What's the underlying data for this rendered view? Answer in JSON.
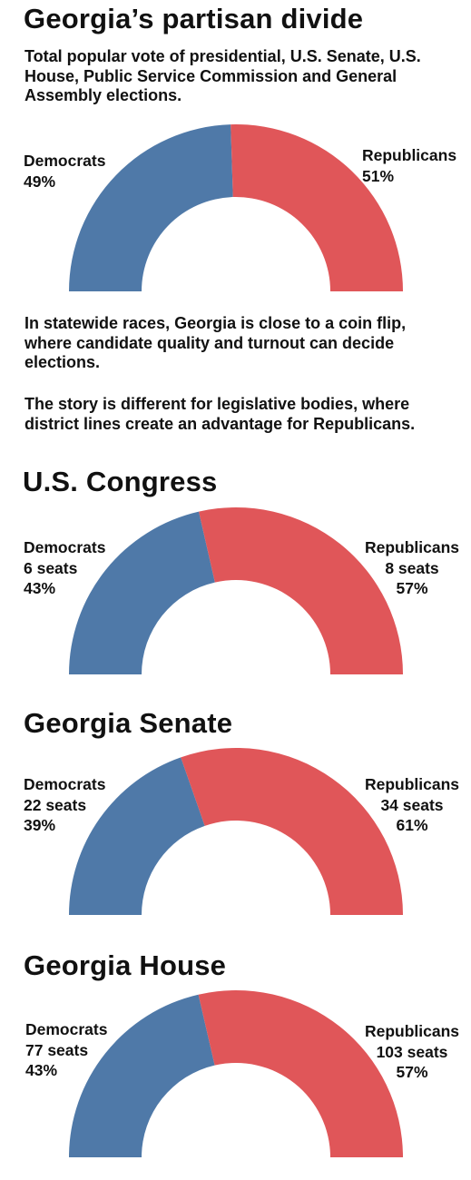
{
  "title": "Georgia’s partisan divide",
  "subtitle": "Total popular vote of presidential, U.S. Senate, U.S. House, Public Service Commission and General Assembly elections.",
  "body": {
    "para1": "In statewide races, Georgia is close to a coin flip, where candidate quality and turnout can decide elections.",
    "para2": "The story is different for legislative bodies, where district lines create an advantage for Republicans."
  },
  "colors": {
    "democrats": "#4f79a8",
    "republicans": "#e05659"
  },
  "chart_data": [
    {
      "type": "pie",
      "subtype": "half-donut",
      "title": "",
      "categories": [
        "Democrats",
        "Republicans"
      ],
      "values": [
        49,
        51
      ],
      "unit": "%",
      "labels": {
        "dem": {
          "name": "Democrats",
          "pct": "49%"
        },
        "rep": {
          "name": "Republicans",
          "pct": "51%"
        }
      }
    },
    {
      "type": "pie",
      "subtype": "half-donut",
      "title": "U.S. Congress",
      "categories": [
        "Democrats",
        "Republicans"
      ],
      "values": [
        6,
        8
      ],
      "unit": "seats",
      "labels": {
        "dem": {
          "name": "Democrats",
          "seats": "6 seats",
          "pct": "43%"
        },
        "rep": {
          "name": "Republicans",
          "seats": "8 seats",
          "pct": "57%"
        }
      }
    },
    {
      "type": "pie",
      "subtype": "half-donut",
      "title": "Georgia Senate",
      "categories": [
        "Democrats",
        "Republicans"
      ],
      "values": [
        22,
        34
      ],
      "unit": "seats",
      "labels": {
        "dem": {
          "name": "Democrats",
          "seats": "22 seats",
          "pct": "39%"
        },
        "rep": {
          "name": "Republicans",
          "seats": "34 seats",
          "pct": "61%"
        }
      }
    },
    {
      "type": "pie",
      "subtype": "half-donut",
      "title": "Georgia House",
      "categories": [
        "Democrats",
        "Republicans"
      ],
      "values": [
        77,
        103
      ],
      "unit": "seats",
      "labels": {
        "dem": {
          "name": "Democrats",
          "seats": "77 seats",
          "pct": "43%"
        },
        "rep": {
          "name": "Republicans",
          "seats": "103 seats",
          "pct": "57%"
        }
      }
    }
  ]
}
